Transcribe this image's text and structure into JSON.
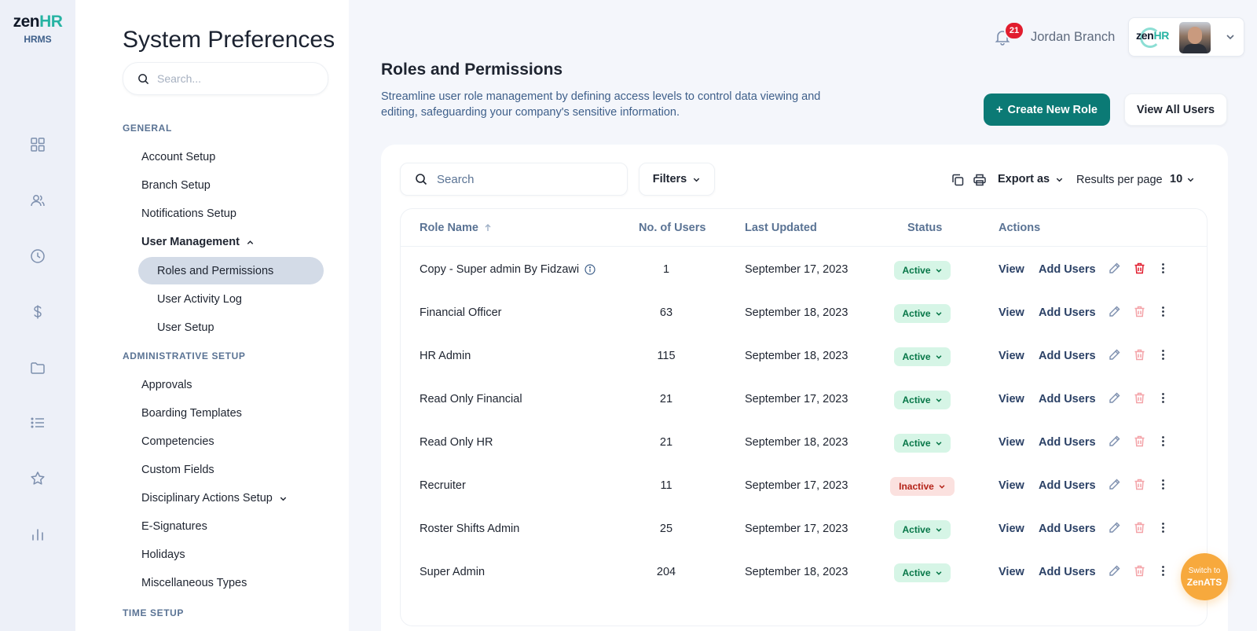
{
  "brand": {
    "logo_main": "zen",
    "logo_accent": "HR",
    "logo_sub": "HRMS"
  },
  "rail_icons": [
    "dashboard-icon",
    "people-icon",
    "clock-icon",
    "dollar-icon",
    "folder-icon",
    "list-icon",
    "star-icon",
    "bar-chart-icon"
  ],
  "sidebar": {
    "title": "System Preferences",
    "search_placeholder": "Search...",
    "sections": {
      "general": "GENERAL",
      "administrative": "ADMINISTRATIVE SETUP",
      "time": "TIME SETUP"
    },
    "general_items": [
      "Account Setup",
      "Branch Setup",
      "Notifications Setup"
    ],
    "user_management": "User Management",
    "user_mgmt_items": [
      "Roles and Permissions",
      "User Activity Log",
      "User Setup"
    ],
    "admin_items": [
      "Approvals",
      "Boarding Templates",
      "Competencies",
      "Custom Fields",
      "Disciplinary Actions Setup",
      "E-Signatures",
      "Holidays",
      "Miscellaneous Types"
    ]
  },
  "topbar": {
    "notification_count": "21",
    "user_name": "Jordan Branch",
    "brand_logo_main": "zen",
    "brand_logo_accent": "HR"
  },
  "page": {
    "title": "Roles and Permissions",
    "description": "Streamline user role management by defining access levels to control data viewing and editing, safeguarding your company's sensitive information.",
    "create_button": "Create New Role",
    "create_button_prefix": "+",
    "view_all_button": "View All Users"
  },
  "toolbar": {
    "search_placeholder": "Search",
    "filters_label": "Filters",
    "export_label": "Export as",
    "results_per_page_label": "Results per page",
    "results_per_page_value": "10"
  },
  "table": {
    "columns": {
      "role_name": "Role Name",
      "users": "No. of Users",
      "last_updated": "Last Updated",
      "status": "Status",
      "actions": "Actions"
    },
    "view_label": "View",
    "add_users_label": "Add Users",
    "rows": [
      {
        "name": "Copy - Super admin By Fidzawi",
        "info": true,
        "users": "1",
        "updated": "September 17, 2023",
        "status": "Active"
      },
      {
        "name": "Financial Officer",
        "users": "63",
        "updated": "September 18, 2023",
        "status": "Active"
      },
      {
        "name": "HR Admin",
        "users": "115",
        "updated": "September 18, 2023",
        "status": "Active"
      },
      {
        "name": "Read Only Financial",
        "users": "21",
        "updated": "September 17, 2023",
        "status": "Active"
      },
      {
        "name": "Read Only HR",
        "users": "21",
        "updated": "September 18, 2023",
        "status": "Active"
      },
      {
        "name": "Recruiter",
        "users": "11",
        "updated": "September 17, 2023",
        "status": "Inactive"
      },
      {
        "name": "Roster Shifts Admin",
        "users": "25",
        "updated": "September 17, 2023",
        "status": "Active"
      },
      {
        "name": "Super Admin",
        "users": "204",
        "updated": "September 18, 2023",
        "status": "Active"
      }
    ]
  },
  "switch_widget": {
    "line1": "Switch to",
    "line2": "ZenATS"
  },
  "colors": {
    "primary": "#0b7a75",
    "accent": "#27b3a3",
    "active_bg": "#d6f5e6",
    "inactive_bg": "#fbe1df",
    "badge": "#e11d2e",
    "switch": "#f7a93d"
  }
}
